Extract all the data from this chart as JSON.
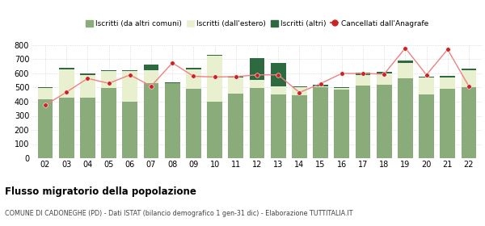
{
  "years": [
    "02",
    "03",
    "04",
    "05",
    "06",
    "07",
    "08",
    "09",
    "10",
    "11",
    "12",
    "13",
    "14",
    "15",
    "16",
    "17",
    "18",
    "19",
    "20",
    "21",
    "22"
  ],
  "iscritti_altri_comuni": [
    415,
    430,
    430,
    495,
    400,
    530,
    530,
    490,
    400,
    455,
    495,
    450,
    445,
    500,
    485,
    515,
    520,
    565,
    450,
    490,
    505
  ],
  "iscritti_estero": [
    80,
    200,
    160,
    120,
    215,
    95,
    0,
    140,
    325,
    115,
    60,
    60,
    55,
    10,
    10,
    75,
    80,
    110,
    120,
    80,
    120
  ],
  "iscritti_altri": [
    8,
    12,
    8,
    10,
    10,
    40,
    8,
    8,
    5,
    8,
    155,
    165,
    10,
    8,
    10,
    15,
    10,
    15,
    8,
    10,
    8
  ],
  "cancellati_anagrafe": [
    375,
    468,
    565,
    530,
    590,
    510,
    675,
    580,
    575,
    578,
    590,
    590,
    465,
    528,
    600,
    600,
    595,
    780,
    590,
    770,
    510
  ],
  "color_altri_comuni": "#8aab7a",
  "color_estero": "#e8f0d0",
  "color_altri": "#2d6a3f",
  "color_cancellati": "#cc2222",
  "color_line": "#f08080",
  "ylim": [
    0,
    800
  ],
  "yticks": [
    0,
    100,
    200,
    300,
    400,
    500,
    600,
    700,
    800
  ],
  "title": "Flusso migratorio della popolazione",
  "subtitle": "COMUNE DI CADONEGHE (PD) - Dati ISTAT (bilancio demografico 1 gen-31 dic) - Elaborazione TUTTITALIA.IT",
  "legend_labels": [
    "Iscritti (da altri comuni)",
    "Iscritti (dall'estero)",
    "Iscritti (altri)",
    "Cancellati dall'Anagrafe"
  ],
  "bg_color": "#ffffff",
  "grid_color": "#cccccc"
}
